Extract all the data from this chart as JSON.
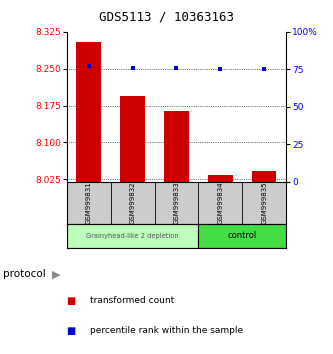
{
  "title": "GDS5113 / 10363163",
  "samples": [
    "GSM999831",
    "GSM999832",
    "GSM999833",
    "GSM999834",
    "GSM999835"
  ],
  "bar_bottom": 8.02,
  "bar_values": [
    8.305,
    8.195,
    8.165,
    8.033,
    8.043
  ],
  "percentile_values": [
    77,
    76,
    76,
    75,
    75
  ],
  "ylim_left": [
    8.02,
    8.325
  ],
  "ylim_right": [
    0,
    100
  ],
  "yticks_left": [
    8.025,
    8.1,
    8.175,
    8.25,
    8.325
  ],
  "yticks_right": [
    0,
    25,
    50,
    75,
    100
  ],
  "ytick_labels_right": [
    "0",
    "25",
    "50",
    "75",
    "100%"
  ],
  "bar_color": "#cc0000",
  "dot_color": "#0000cc",
  "group1_label": "Grainyhead-like 2 depletion",
  "group2_label": "control",
  "group1_color": "#bbffbb",
  "group2_color": "#44dd44",
  "group1_indices": [
    0,
    1,
    2
  ],
  "group2_indices": [
    3,
    4
  ],
  "protocol_label": "protocol",
  "legend1_label": "transformed count",
  "legend2_label": "percentile rank within the sample",
  "bar_width": 0.55,
  "background_color": "#ffffff"
}
